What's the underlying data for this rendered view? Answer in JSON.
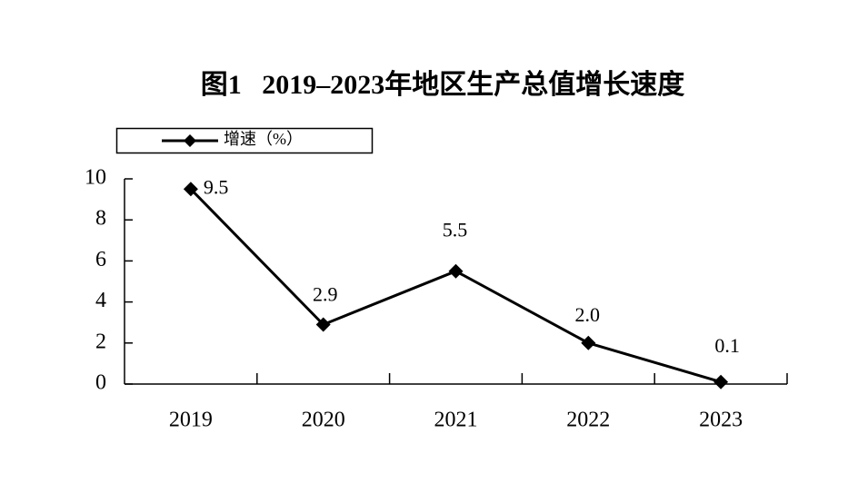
{
  "chart_data": {
    "type": "line",
    "title": "图1   2019–2023年地区生产总值增长速度",
    "categories": [
      "2019",
      "2020",
      "2021",
      "2022",
      "2023"
    ],
    "series": [
      {
        "name": "增速（%）",
        "values": [
          9.5,
          2.9,
          5.5,
          2.0,
          0.1
        ],
        "labels": [
          "9.5",
          "2.9",
          "5.5",
          "2.0",
          "0.1"
        ],
        "marker": "diamond",
        "color": "#000000"
      }
    ],
    "yticks": [
      0,
      2,
      4,
      6,
      8,
      10
    ],
    "ylim": [
      0,
      10
    ],
    "xlabel": "",
    "ylabel": "",
    "grid": false,
    "legend_position": "top-left"
  },
  "colors": {
    "background": "#ffffff",
    "ink": "#000000"
  }
}
